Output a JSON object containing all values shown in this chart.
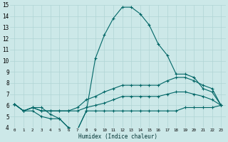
{
  "xlabel": "Humidex (Indice chaleur)",
  "xlim": [
    -0.5,
    23.5
  ],
  "ylim": [
    4,
    15
  ],
  "xtick_labels": [
    "0",
    "1",
    "2",
    "3",
    "4",
    "5",
    "6",
    "7",
    "8",
    "9",
    "10",
    "11",
    "12",
    "13",
    "14",
    "15",
    "16",
    "17",
    "18",
    "19",
    "20",
    "21",
    "22",
    "23"
  ],
  "background_color": "#cce8e8",
  "grid_color": "#b0d4d4",
  "line_color": "#006666",
  "lines": [
    [
      6.1,
      5.5,
      5.8,
      5.8,
      5.2,
      4.8,
      4.0,
      3.8,
      5.5,
      10.2,
      12.3,
      13.8,
      14.8,
      14.8,
      14.2,
      13.2,
      11.5,
      10.5,
      8.8,
      8.8,
      8.5,
      7.5,
      7.2,
      6.0
    ],
    [
      6.1,
      5.5,
      5.8,
      5.5,
      5.5,
      5.5,
      5.5,
      5.8,
      6.5,
      6.8,
      7.2,
      7.5,
      7.8,
      7.8,
      7.8,
      7.8,
      7.8,
      8.2,
      8.5,
      8.5,
      8.2,
      7.8,
      7.5,
      6.0
    ],
    [
      6.1,
      5.5,
      5.8,
      5.5,
      5.5,
      5.5,
      5.5,
      5.5,
      5.8,
      6.0,
      6.2,
      6.5,
      6.8,
      6.8,
      6.8,
      6.8,
      6.8,
      7.0,
      7.2,
      7.2,
      7.0,
      6.8,
      6.5,
      6.0
    ],
    [
      6.1,
      5.5,
      5.5,
      5.0,
      4.8,
      4.8,
      4.0,
      3.8,
      5.5,
      5.5,
      5.5,
      5.5,
      5.5,
      5.5,
      5.5,
      5.5,
      5.5,
      5.5,
      5.5,
      5.8,
      5.8,
      5.8,
      5.8,
      6.0
    ]
  ]
}
